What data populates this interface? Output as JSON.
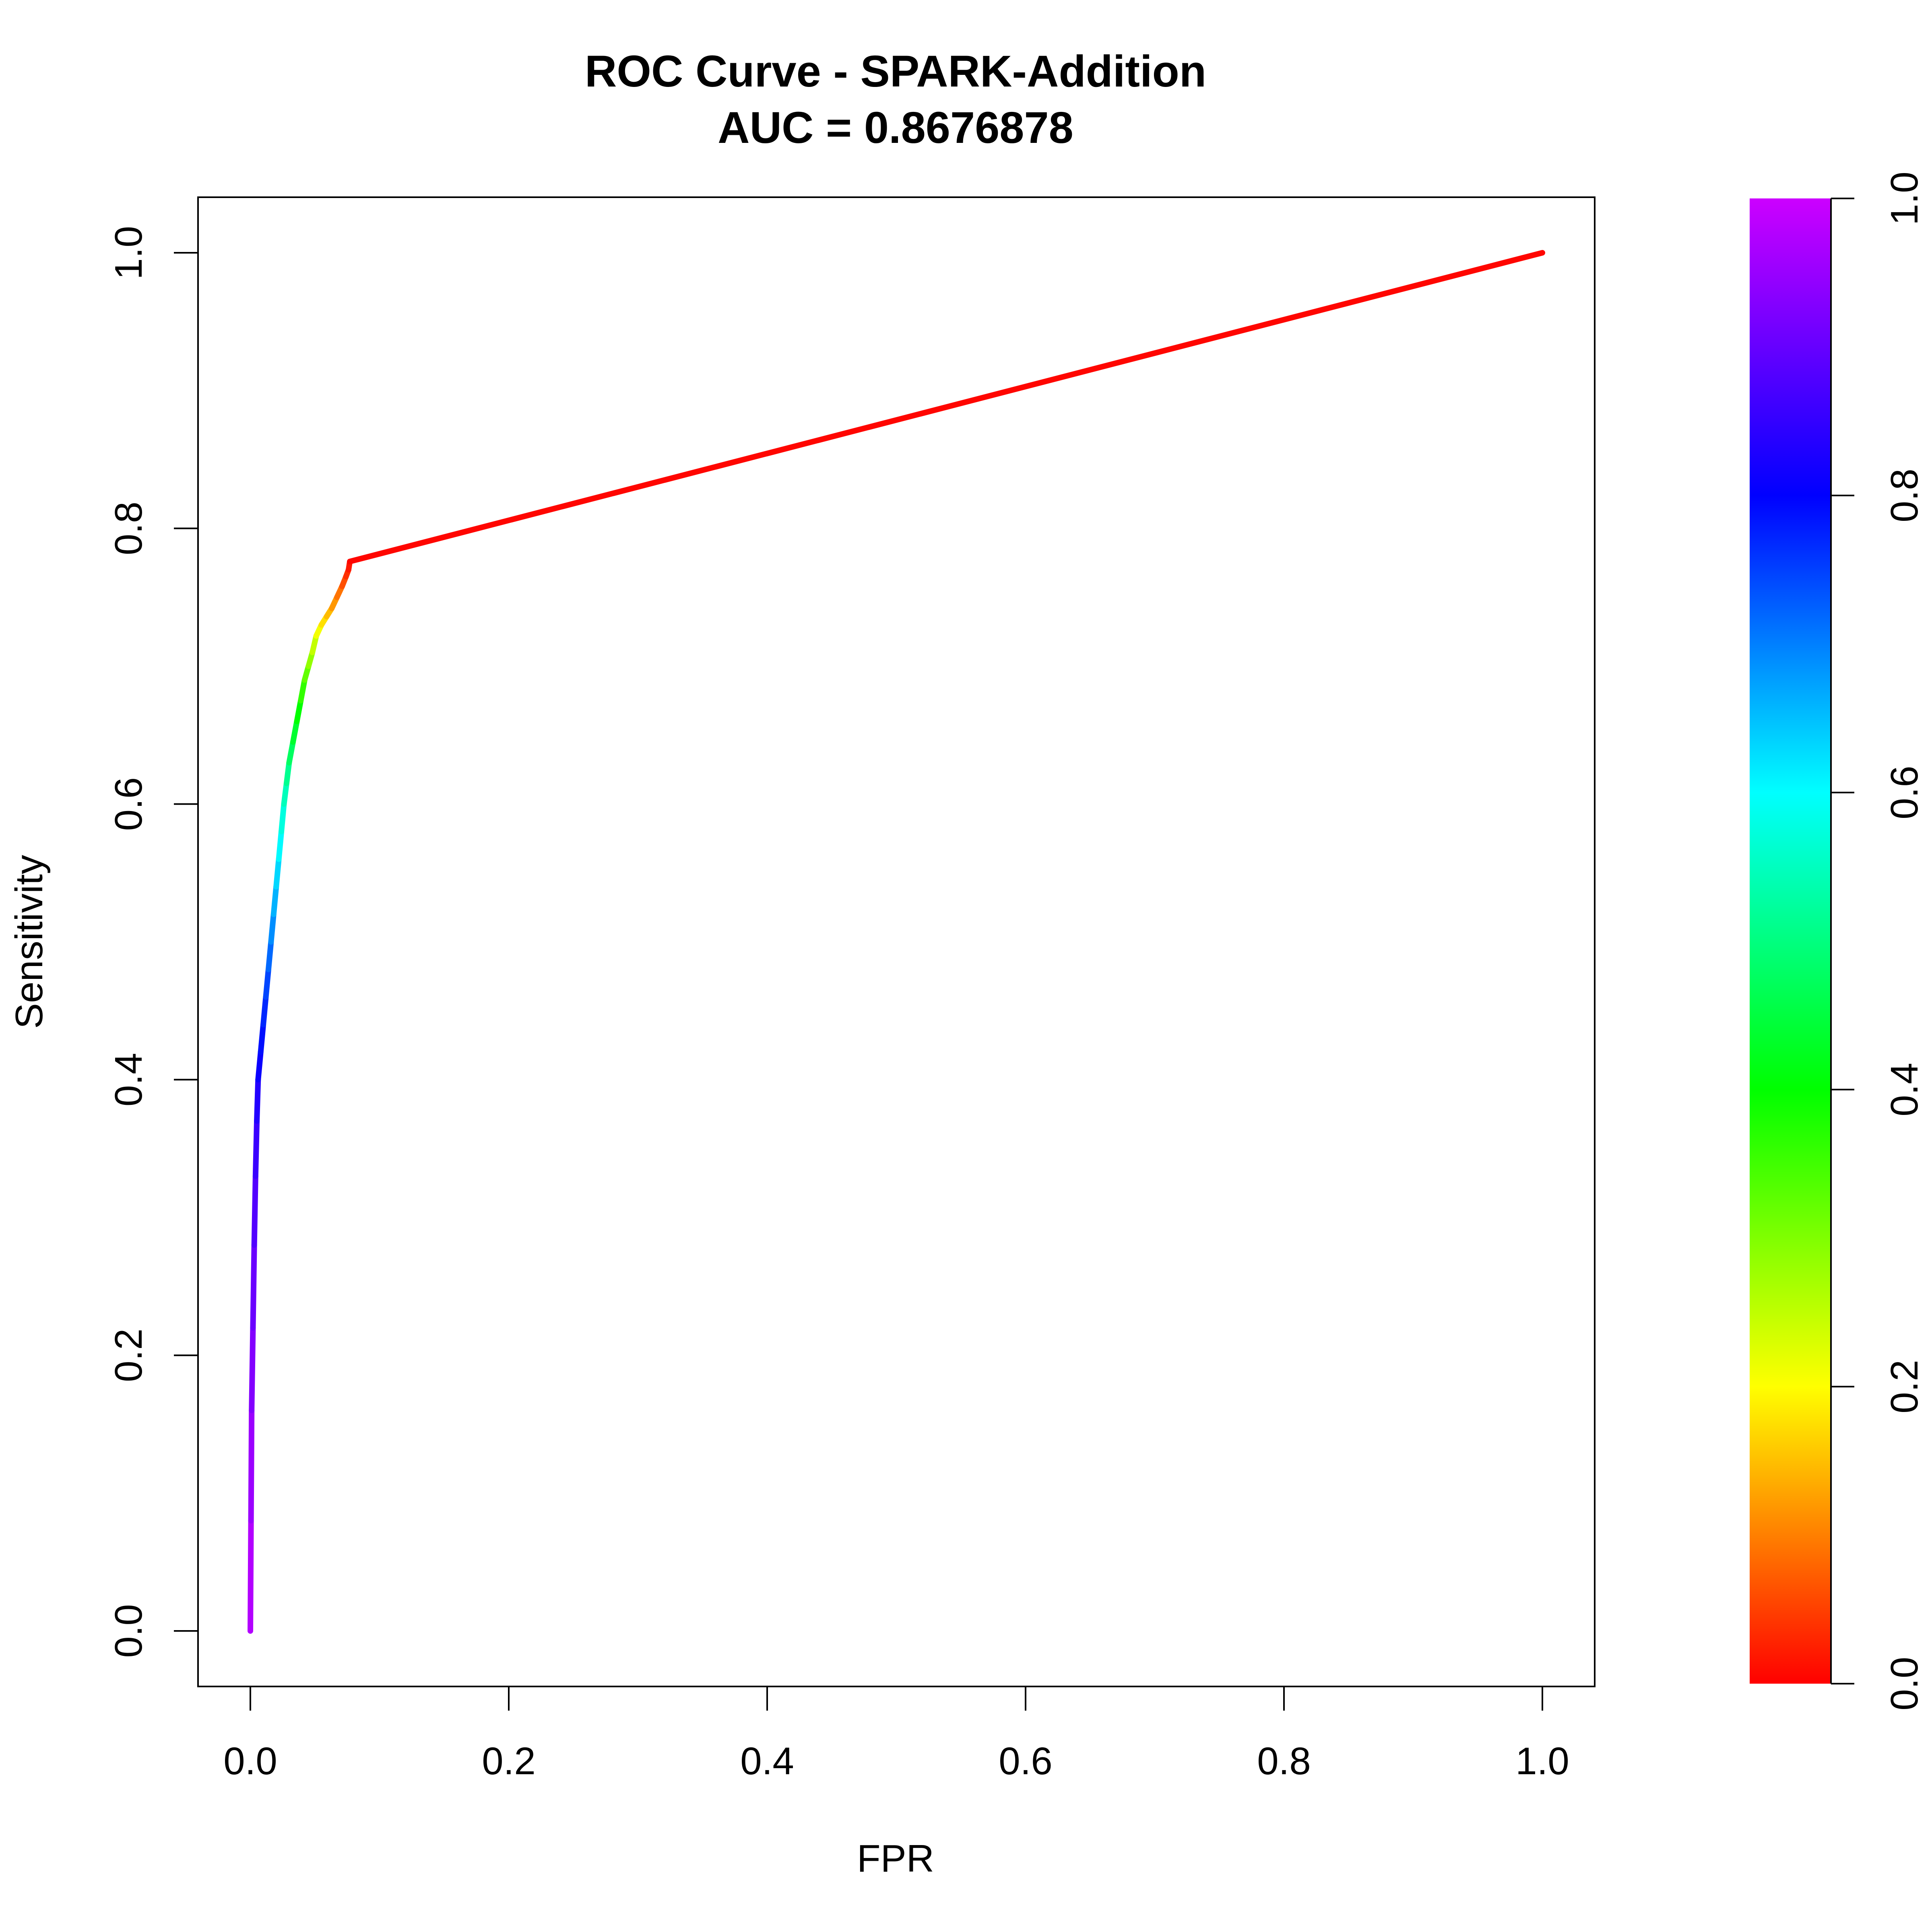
{
  "chart_data": {
    "type": "line",
    "title": "ROC Curve - SPARK-Addition",
    "subtitle": "AUC = 0.8676878",
    "xlabel": "FPR",
    "ylabel": "Sensitivity",
    "xlim": [
      0,
      1
    ],
    "ylim": [
      0,
      1
    ],
    "xticks": [
      "0.0",
      "0.2",
      "0.4",
      "0.6",
      "0.8",
      "1.0"
    ],
    "yticks": [
      "0.0",
      "0.2",
      "0.4",
      "0.6",
      "0.8",
      "1.0"
    ],
    "grid": false,
    "legend": "colorbar right",
    "colorscale": "rainbow (red to magenta)",
    "colorbar_ticks": [
      "0.0",
      "0.2",
      "0.4",
      "0.6",
      "0.8",
      "1.0"
    ],
    "colorbar_range": [
      0,
      1
    ],
    "series": [
      {
        "x": [
          0.0,
          0.0005,
          0.001,
          0.002,
          0.003,
          0.004,
          0.005,
          0.006,
          0.008,
          0.01,
          0.012,
          0.014,
          0.016,
          0.018,
          0.02,
          0.022,
          0.024,
          0.026,
          0.028,
          0.03,
          0.033,
          0.036,
          0.039,
          0.042,
          0.045,
          0.048,
          0.051,
          0.055,
          0.059,
          0.063,
          0.067,
          0.071,
          0.074,
          0.076,
          0.077,
          1.0
        ],
        "y": [
          0.0,
          0.08,
          0.16,
          0.22,
          0.28,
          0.33,
          0.37,
          0.4,
          0.42,
          0.44,
          0.46,
          0.48,
          0.5,
          0.52,
          0.54,
          0.56,
          0.58,
          0.6,
          0.615,
          0.63,
          0.645,
          0.66,
          0.675,
          0.69,
          0.7,
          0.71,
          0.722,
          0.73,
          0.736,
          0.742,
          0.75,
          0.758,
          0.765,
          0.77,
          0.776,
          1.0
        ],
        "threshold": [
          1.0,
          0.98,
          0.96,
          0.94,
          0.92,
          0.9,
          0.88,
          0.86,
          0.84,
          0.82,
          0.8,
          0.77,
          0.74,
          0.71,
          0.68,
          0.65,
          0.62,
          0.59,
          0.56,
          0.52,
          0.48,
          0.44,
          0.4,
          0.36,
          0.32,
          0.28,
          0.24,
          0.2,
          0.17,
          0.14,
          0.11,
          0.08,
          0.05,
          0.03,
          0.01,
          0.0
        ]
      }
    ]
  }
}
